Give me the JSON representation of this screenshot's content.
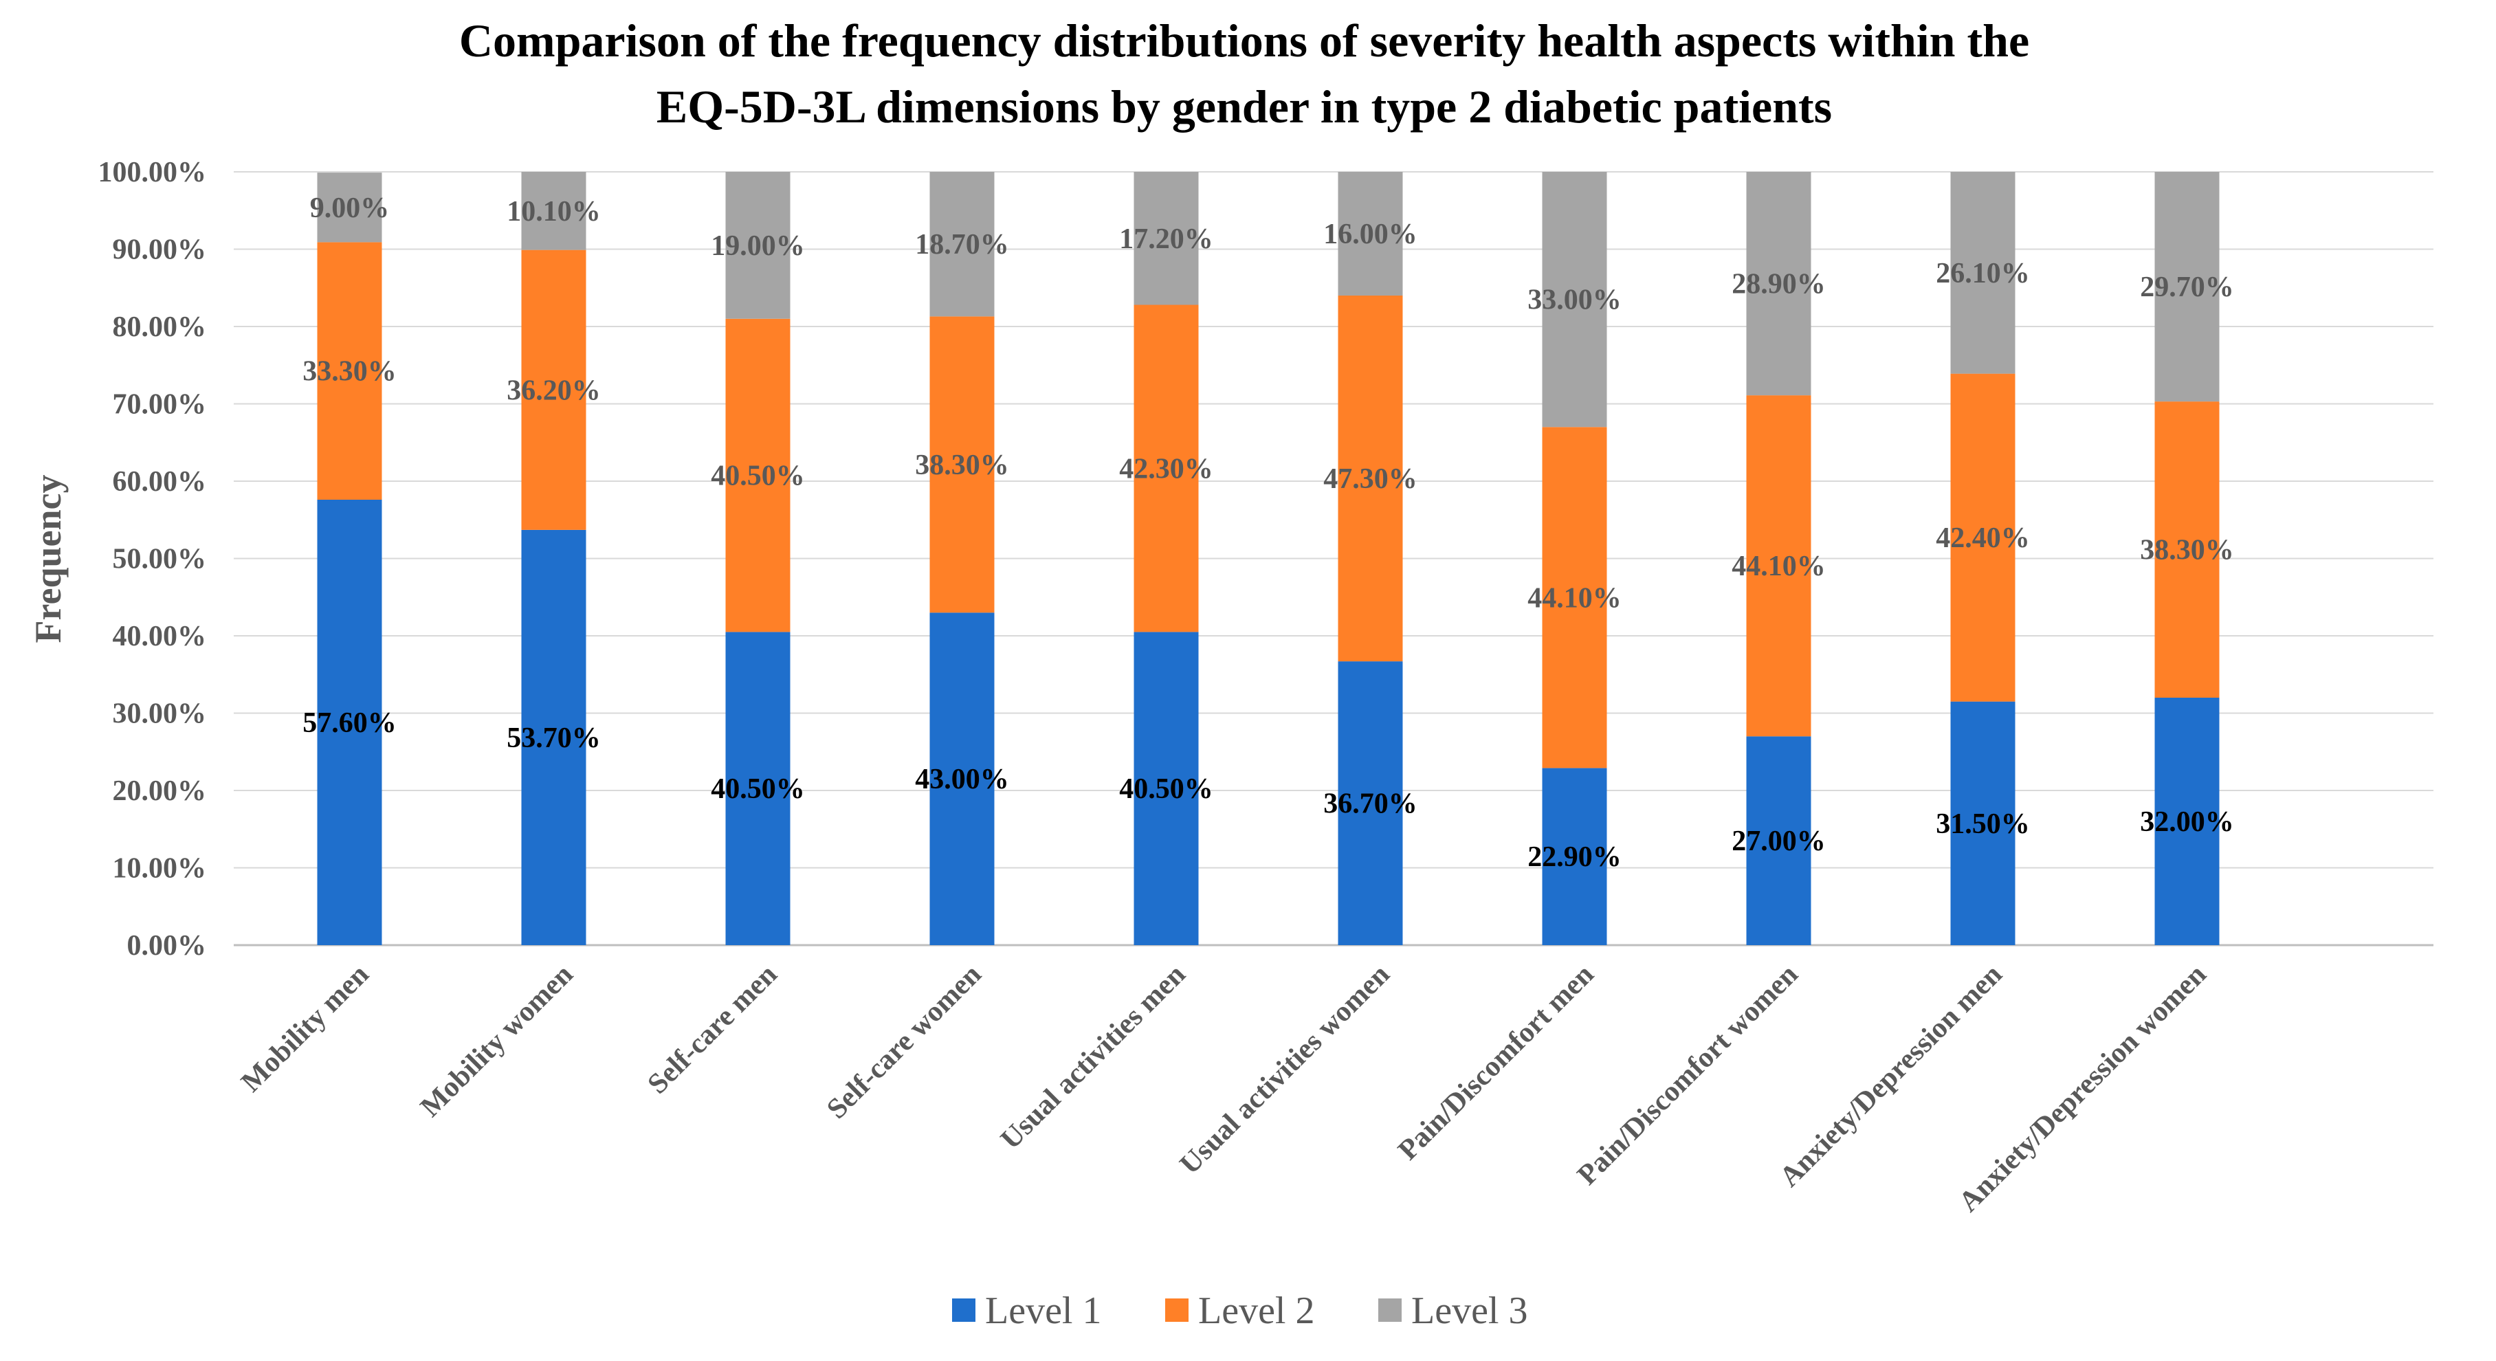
{
  "chart_data": {
    "type": "bar",
    "stacked": true,
    "title": "Comparison of the frequency distributions of severity health aspects within the",
    "subtitle": "EQ-5D-3L dimensions by gender in type 2 diabetic patients",
    "xlabel": "",
    "ylabel": "Frequency",
    "ylim": [
      0,
      100
    ],
    "yticks": [
      "0.00%",
      "10.00%",
      "20.00%",
      "30.00%",
      "40.00%",
      "50.00%",
      "60.00%",
      "70.00%",
      "80.00%",
      "90.00%",
      "100.00%"
    ],
    "categories": [
      "Mobility men",
      "Mobility women",
      "Self-care men",
      "Self-care women",
      "Usual activities men",
      "Usual activities women",
      "Pain/Discomfort men",
      "Pain/Discomfort women",
      "Anxiety/Depression men",
      "Anxiety/Depression women"
    ],
    "series": [
      {
        "name": "Level 1",
        "color": "#1F6FCC",
        "label_color": "#000000",
        "values": [
          57.6,
          53.7,
          40.5,
          43.0,
          40.5,
          36.7,
          22.9,
          27.0,
          31.5,
          32.0
        ],
        "labels": [
          "57.60%",
          "53.70%",
          "40.50%",
          "43.00%",
          "40.50%",
          "36.70%",
          "22.90%",
          "27.00%",
          "31.50%",
          "32.00%"
        ]
      },
      {
        "name": "Level 2",
        "color": "#FF8027",
        "label_color": "#595959",
        "values": [
          33.3,
          36.2,
          40.5,
          38.3,
          42.3,
          47.3,
          44.1,
          44.1,
          42.4,
          38.3
        ],
        "labels": [
          "33.30%",
          "36.20%",
          "40.50%",
          "38.30%",
          "42.30%",
          "47.30%",
          "44.10%",
          "44.10%",
          "42.40%",
          "38.30%"
        ]
      },
      {
        "name": "Level 3",
        "color": "#A5A5A5",
        "label_color": "#595959",
        "values": [
          9.0,
          10.1,
          19.0,
          18.7,
          17.2,
          16.0,
          33.0,
          28.9,
          26.1,
          29.7
        ],
        "labels": [
          "9.00%",
          "10.10%",
          "19.00%",
          "18.70%",
          "17.20%",
          "16.00%",
          "33.00%",
          "28.90%",
          "26.10%",
          "29.70%"
        ]
      }
    ],
    "grid": true,
    "legend": "bottom"
  }
}
